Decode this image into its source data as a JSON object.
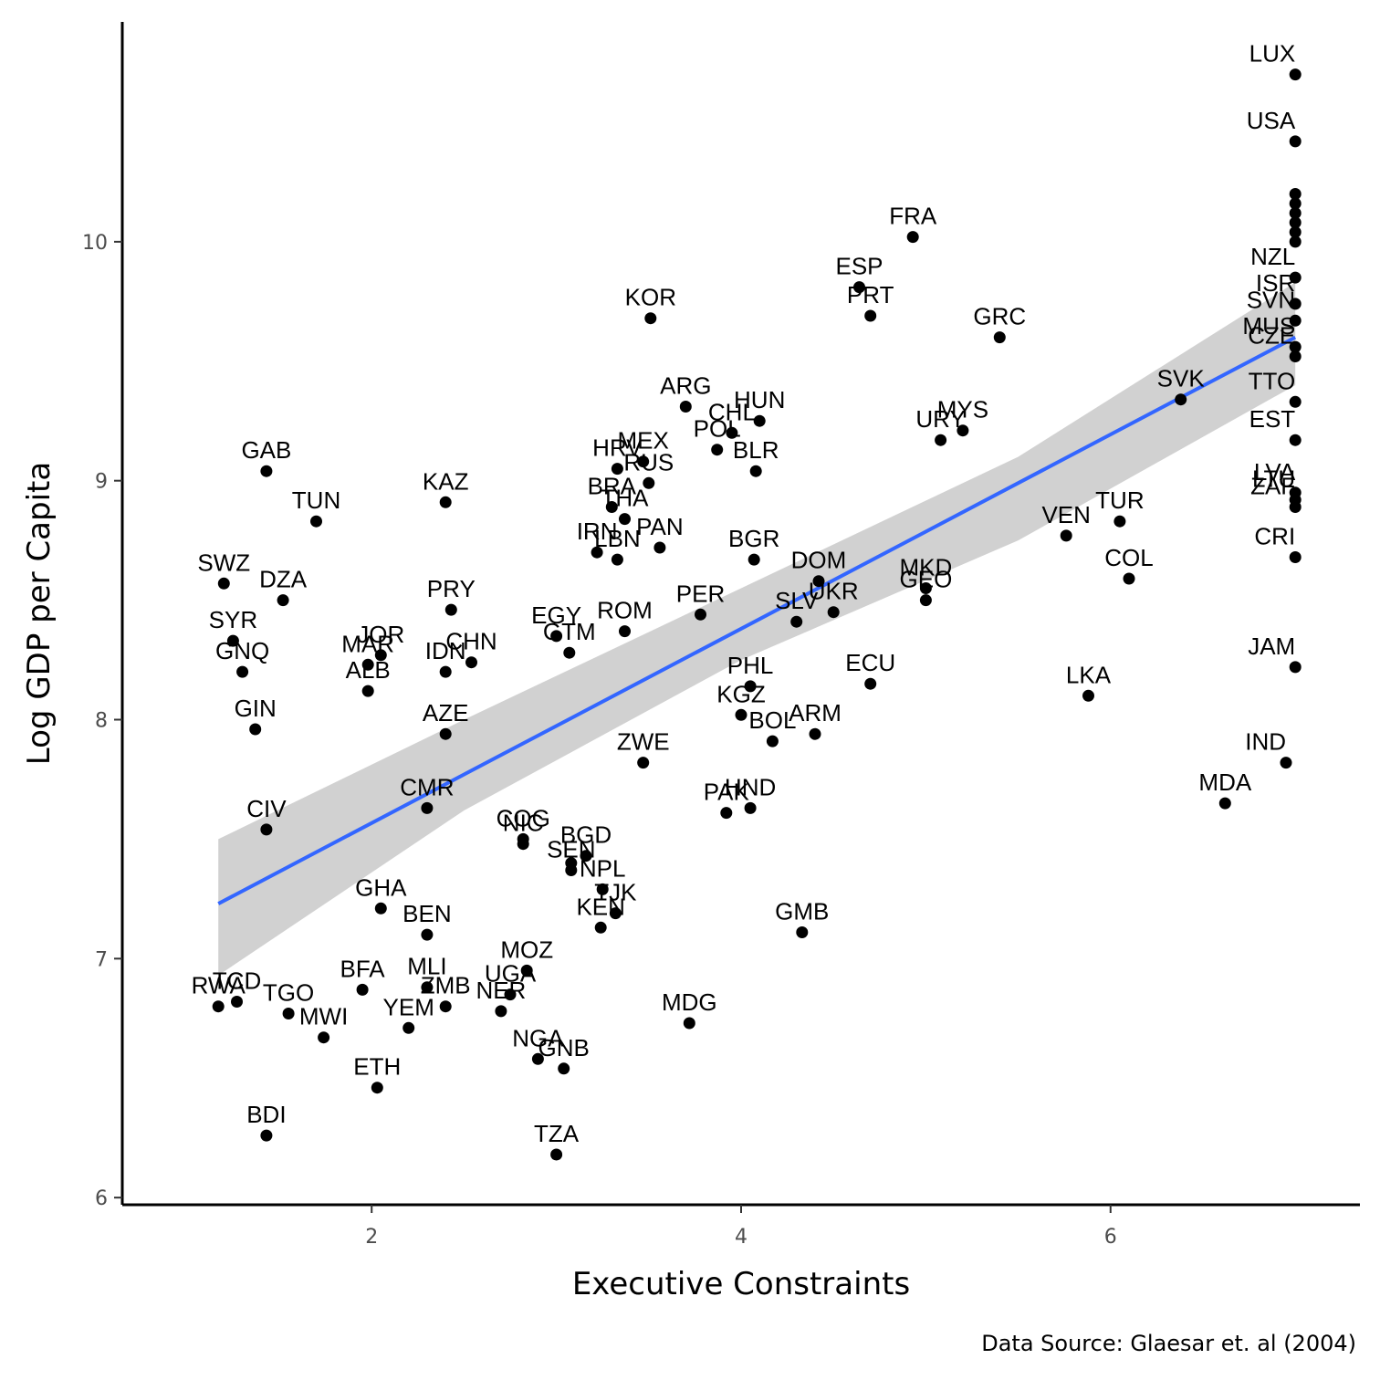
{
  "chart_data": {
    "type": "scatter",
    "xlabel": "Executive Constraints",
    "ylabel": "Log GDP per Capita",
    "caption": "Data Source: Glaesar et. al (2004)",
    "xlim": [
      0.65,
      7.35
    ],
    "ylim": [
      5.97,
      10.92
    ],
    "x_ticks": [
      2,
      4,
      6
    ],
    "y_ticks": [
      6,
      7,
      8,
      9,
      10
    ],
    "grid": false,
    "colors": {
      "points": "#000000",
      "fit_line": "#3366ff",
      "ribbon": "#cccccc"
    },
    "fit_line": {
      "x": [
        1.17,
        7.0
      ],
      "y": [
        7.23,
        9.6
      ]
    },
    "confidence_band": {
      "x": [
        1.17,
        2.5,
        4.0,
        5.5,
        7.0
      ],
      "upper": [
        7.5,
        8.0,
        8.55,
        9.1,
        9.83
      ],
      "lower": [
        6.93,
        7.62,
        8.25,
        8.75,
        9.4
      ]
    },
    "points": [
      {
        "x": 7.0,
        "y": 10.7,
        "label": "LUX"
      },
      {
        "x": 7.0,
        "y": 10.42,
        "label": "USA"
      },
      {
        "x": 7.0,
        "y": 10.2,
        "label": ""
      },
      {
        "x": 7.0,
        "y": 10.16,
        "label": ""
      },
      {
        "x": 7.0,
        "y": 10.12,
        "label": ""
      },
      {
        "x": 7.0,
        "y": 10.08,
        "label": ""
      },
      {
        "x": 7.0,
        "y": 10.04,
        "label": ""
      },
      {
        "x": 7.0,
        "y": 10.0,
        "label": ""
      },
      {
        "x": 7.0,
        "y": 9.85,
        "label": "NZL"
      },
      {
        "x": 7.0,
        "y": 9.74,
        "label": "ISR"
      },
      {
        "x": 7.0,
        "y": 9.67,
        "label": "SVN"
      },
      {
        "x": 7.0,
        "y": 9.56,
        "label": "MUS"
      },
      {
        "x": 7.0,
        "y": 9.52,
        "label": "CZE"
      },
      {
        "x": 7.0,
        "y": 9.33,
        "label": "TTO"
      },
      {
        "x": 7.0,
        "y": 9.17,
        "label": "EST"
      },
      {
        "x": 7.0,
        "y": 8.95,
        "label": "LVA"
      },
      {
        "x": 7.0,
        "y": 8.92,
        "label": "LTU"
      },
      {
        "x": 7.0,
        "y": 8.89,
        "label": "ZAF"
      },
      {
        "x": 7.0,
        "y": 8.68,
        "label": "CRI"
      },
      {
        "x": 7.0,
        "y": 8.22,
        "label": "JAM"
      },
      {
        "x": 6.95,
        "y": 7.82,
        "label": "IND"
      },
      {
        "x": 6.62,
        "y": 7.65,
        "label": "MDA"
      },
      {
        "x": 6.38,
        "y": 9.34,
        "label": "SVK"
      },
      {
        "x": 6.1,
        "y": 8.59,
        "label": "COL"
      },
      {
        "x": 6.05,
        "y": 8.83,
        "label": "TUR"
      },
      {
        "x": 5.88,
        "y": 8.1,
        "label": "LKA"
      },
      {
        "x": 5.76,
        "y": 8.77,
        "label": "VEN"
      },
      {
        "x": 5.4,
        "y": 9.6,
        "label": "GRC"
      },
      {
        "x": 5.2,
        "y": 9.21,
        "label": "MYS"
      },
      {
        "x": 5.08,
        "y": 9.17,
        "label": "URY"
      },
      {
        "x": 5.0,
        "y": 8.55,
        "label": "MKD"
      },
      {
        "x": 5.0,
        "y": 8.5,
        "label": "GEO"
      },
      {
        "x": 4.93,
        "y": 10.02,
        "label": "FRA"
      },
      {
        "x": 4.7,
        "y": 9.69,
        "label": "PRT"
      },
      {
        "x": 4.64,
        "y": 9.81,
        "label": "ESP"
      },
      {
        "x": 4.7,
        "y": 8.15,
        "label": "ECU"
      },
      {
        "x": 4.5,
        "y": 8.45,
        "label": "UKR"
      },
      {
        "x": 4.42,
        "y": 8.58,
        "label": "DOM"
      },
      {
        "x": 4.3,
        "y": 8.41,
        "label": "SLV"
      },
      {
        "x": 4.4,
        "y": 7.94,
        "label": "ARM"
      },
      {
        "x": 4.33,
        "y": 7.11,
        "label": "GMB"
      },
      {
        "x": 4.1,
        "y": 9.25,
        "label": "HUN"
      },
      {
        "x": 4.08,
        "y": 9.04,
        "label": "BLR"
      },
      {
        "x": 3.95,
        "y": 9.2,
        "label": "CHL"
      },
      {
        "x": 3.87,
        "y": 9.13,
        "label": "POL"
      },
      {
        "x": 4.07,
        "y": 8.67,
        "label": "BGR"
      },
      {
        "x": 4.05,
        "y": 8.14,
        "label": "PHL"
      },
      {
        "x": 4.0,
        "y": 8.02,
        "label": "KGZ"
      },
      {
        "x": 4.17,
        "y": 7.91,
        "label": "BOL"
      },
      {
        "x": 4.05,
        "y": 7.63,
        "label": "HND"
      },
      {
        "x": 3.92,
        "y": 7.61,
        "label": "PAK"
      },
      {
        "x": 3.78,
        "y": 8.44,
        "label": "PER"
      },
      {
        "x": 3.72,
        "y": 6.73,
        "label": "MDG"
      },
      {
        "x": 3.7,
        "y": 9.31,
        "label": "ARG"
      },
      {
        "x": 3.51,
        "y": 9.68,
        "label": "KOR"
      },
      {
        "x": 3.47,
        "y": 9.08,
        "label": "MEX"
      },
      {
        "x": 3.5,
        "y": 8.99,
        "label": "RUS"
      },
      {
        "x": 3.56,
        "y": 8.72,
        "label": "PAN"
      },
      {
        "x": 3.33,
        "y": 9.05,
        "label": "HRV"
      },
      {
        "x": 3.3,
        "y": 8.89,
        "label": "BRA"
      },
      {
        "x": 3.37,
        "y": 8.84,
        "label": "THA"
      },
      {
        "x": 3.22,
        "y": 8.7,
        "label": "IRN"
      },
      {
        "x": 3.33,
        "y": 8.67,
        "label": "LBN"
      },
      {
        "x": 3.37,
        "y": 8.37,
        "label": "ROM"
      },
      {
        "x": 3.47,
        "y": 7.82,
        "label": "ZWE"
      },
      {
        "x": 3.0,
        "y": 8.35,
        "label": "EGY"
      },
      {
        "x": 3.07,
        "y": 8.28,
        "label": "GTM"
      },
      {
        "x": 3.16,
        "y": 7.43,
        "label": "BGD"
      },
      {
        "x": 3.08,
        "y": 7.4,
        "label": ""
      },
      {
        "x": 3.08,
        "y": 7.37,
        "label": "SEN"
      },
      {
        "x": 3.25,
        "y": 7.29,
        "label": "NPL"
      },
      {
        "x": 3.32,
        "y": 7.19,
        "label": "TJK"
      },
      {
        "x": 3.24,
        "y": 7.13,
        "label": "KEN"
      },
      {
        "x": 2.82,
        "y": 7.5,
        "label": "COG"
      },
      {
        "x": 2.82,
        "y": 7.48,
        "label": "NIC"
      },
      {
        "x": 2.84,
        "y": 6.95,
        "label": "MOZ"
      },
      {
        "x": 2.75,
        "y": 6.85,
        "label": "UGA"
      },
      {
        "x": 2.7,
        "y": 6.78,
        "label": "NER"
      },
      {
        "x": 2.9,
        "y": 6.58,
        "label": "NGA"
      },
      {
        "x": 3.04,
        "y": 6.54,
        "label": "GNB"
      },
      {
        "x": 3.0,
        "y": 6.18,
        "label": "TZA"
      },
      {
        "x": 2.43,
        "y": 8.46,
        "label": "PRY"
      },
      {
        "x": 2.54,
        "y": 8.24,
        "label": "CHN"
      },
      {
        "x": 2.4,
        "y": 8.2,
        "label": "IDN"
      },
      {
        "x": 2.4,
        "y": 7.94,
        "label": "AZE"
      },
      {
        "x": 2.4,
        "y": 8.91,
        "label": "KAZ"
      },
      {
        "x": 2.3,
        "y": 7.63,
        "label": "CMR"
      },
      {
        "x": 2.3,
        "y": 7.1,
        "label": "BEN"
      },
      {
        "x": 2.3,
        "y": 6.88,
        "label": "MLI"
      },
      {
        "x": 2.4,
        "y": 6.8,
        "label": "ZMB"
      },
      {
        "x": 2.2,
        "y": 6.71,
        "label": "YEM"
      },
      {
        "x": 2.05,
        "y": 8.27,
        "label": "JOR"
      },
      {
        "x": 1.98,
        "y": 8.23,
        "label": "MAR"
      },
      {
        "x": 1.98,
        "y": 8.12,
        "label": "ALB"
      },
      {
        "x": 2.05,
        "y": 7.21,
        "label": "GHA"
      },
      {
        "x": 1.95,
        "y": 6.87,
        "label": "BFA"
      },
      {
        "x": 2.03,
        "y": 6.46,
        "label": "ETH"
      },
      {
        "x": 1.74,
        "y": 6.67,
        "label": "MWI"
      },
      {
        "x": 1.7,
        "y": 8.83,
        "label": "TUN"
      },
      {
        "x": 1.52,
        "y": 8.5,
        "label": "DZA"
      },
      {
        "x": 1.43,
        "y": 9.04,
        "label": "GAB"
      },
      {
        "x": 1.43,
        "y": 7.54,
        "label": "CIV"
      },
      {
        "x": 1.43,
        "y": 6.26,
        "label": "BDI"
      },
      {
        "x": 1.37,
        "y": 7.96,
        "label": "GIN"
      },
      {
        "x": 1.3,
        "y": 8.2,
        "label": "GNQ"
      },
      {
        "x": 1.25,
        "y": 8.33,
        "label": "SYR"
      },
      {
        "x": 1.2,
        "y": 8.57,
        "label": "SWZ"
      },
      {
        "x": 1.55,
        "y": 6.77,
        "label": "TGO"
      },
      {
        "x": 1.27,
        "y": 6.82,
        "label": "TCD"
      },
      {
        "x": 1.17,
        "y": 6.8,
        "label": "RWA"
      }
    ]
  }
}
